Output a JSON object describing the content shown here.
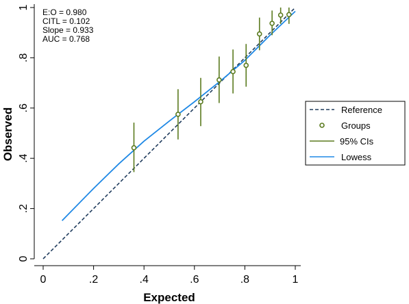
{
  "chart_data": {
    "type": "scatter",
    "xlabel": "Expected",
    "ylabel": "Observed",
    "xlim": [
      0,
      1
    ],
    "ylim": [
      0,
      1
    ],
    "xticks": [
      {
        "value": 0,
        "label": "0"
      },
      {
        "value": 0.2,
        "label": ".2"
      },
      {
        "value": 0.4,
        "label": ".4"
      },
      {
        "value": 0.6,
        "label": ".6"
      },
      {
        "value": 0.8,
        "label": ".8"
      },
      {
        "value": 1,
        "label": "1"
      }
    ],
    "yticks": [
      {
        "value": 0,
        "label": "0"
      },
      {
        "value": 0.2,
        "label": ".2"
      },
      {
        "value": 0.4,
        "label": ".4"
      },
      {
        "value": 0.6,
        "label": ".6"
      },
      {
        "value": 0.8,
        "label": ".8"
      },
      {
        "value": 1,
        "label": "1"
      }
    ],
    "grid": false,
    "legend_position": "right",
    "annotations": [
      "E:O = 0.980",
      "CITL = 0.102",
      "Slope = 0.933",
      "AUC = 0.768"
    ],
    "series": [
      {
        "name": "Reference",
        "kind": "dashed-line",
        "color": "#1f3b5c",
        "x": [
          0,
          1
        ],
        "y": [
          0,
          1
        ]
      },
      {
        "name": "Groups",
        "kind": "marker",
        "color": "#5a7a1e",
        "x": [
          0.36,
          0.535,
          0.625,
          0.698,
          0.753,
          0.805,
          0.858,
          0.908,
          0.942,
          0.975
        ],
        "y": [
          0.442,
          0.575,
          0.625,
          0.712,
          0.745,
          0.77,
          0.895,
          0.937,
          0.97,
          0.972
        ]
      },
      {
        "name": "95% CIs",
        "kind": "errorbar",
        "color": "#5a7a1e",
        "x": [
          0.36,
          0.535,
          0.625,
          0.698,
          0.753,
          0.805,
          0.858,
          0.908,
          0.942,
          0.975
        ],
        "low": [
          0.345,
          0.475,
          0.528,
          0.62,
          0.658,
          0.685,
          0.83,
          0.89,
          0.935,
          0.935
        ],
        "high": [
          0.542,
          0.675,
          0.72,
          0.805,
          0.833,
          0.855,
          0.96,
          0.988,
          1.0,
          1.0
        ]
      },
      {
        "name": "Lowess",
        "kind": "line",
        "color": "#1e88e5",
        "x": [
          0.075,
          0.2,
          0.3,
          0.4,
          0.5,
          0.6,
          0.7,
          0.8,
          0.9,
          1.0
        ],
        "y": [
          0.152,
          0.28,
          0.378,
          0.468,
          0.548,
          0.625,
          0.705,
          0.79,
          0.89,
          0.985
        ]
      }
    ]
  }
}
